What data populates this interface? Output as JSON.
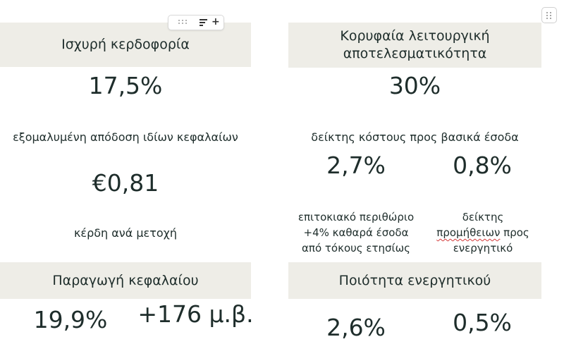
{
  "panels": {
    "strong_profitability": {
      "title": "Ισχυρή κερδοφορία",
      "metric_1_value": "17,5%",
      "metric_1_label": "εξομαλυμένη απόδοση ιδίων κεφαλαίων",
      "metric_2_value": "€0,81",
      "metric_2_label": "κέρδη ανά μετοχή"
    },
    "operating_efficiency": {
      "title_line_1": "Κορυφαία λειτουργική",
      "title_line_2": "αποτελεσματικότητα",
      "main_value": "30%",
      "main_label": "δείκτης κόστους προς βασικά έσοδα",
      "left_value": "2,7%",
      "left_label_line_1": "επιτοκιακό περιθώριο",
      "left_label_line_2": "+4% καθαρά έσοδα",
      "left_label_line_3": "από τόκους ετησίως",
      "right_value": "0,8%",
      "right_label_line_1": "δείκτης",
      "right_label_line_2_word": "προμήθειων",
      "right_label_line_2_rest": " προς",
      "right_label_line_3": "ενεργητικό"
    },
    "capital_generation": {
      "title": "Παραγωγή κεφαλαίου",
      "left_value": "19,9%",
      "right_value": "+176 μ.β."
    },
    "asset_quality": {
      "title": "Ποιότητα ενεργητικού",
      "left_value": "2,6%",
      "right_value": "0,5%"
    }
  },
  "toolbar": {
    "icons": [
      "drag-handle-icon",
      "sort-icon",
      "plus-icon"
    ],
    "plus_label": "+"
  },
  "corner_button": {
    "icon": "drag-handle-icon"
  }
}
